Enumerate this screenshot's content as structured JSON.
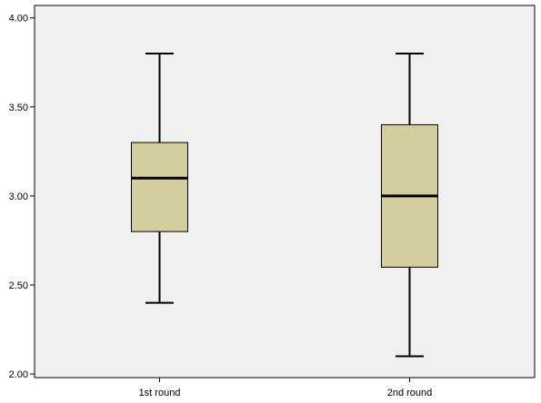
{
  "chart_data": {
    "type": "box",
    "title": "",
    "xlabel": "",
    "ylabel": "",
    "categories": [
      "1st round",
      "2nd round"
    ],
    "boxes": [
      {
        "category": "1st round",
        "min": 2.4,
        "q1": 2.8,
        "median": 3.1,
        "q3": 3.3,
        "max": 3.8
      },
      {
        "category": "2nd round",
        "min": 2.1,
        "q1": 2.6,
        "median": 3.0,
        "q3": 3.4,
        "max": 3.8
      }
    ],
    "ylim": [
      1.98,
      4.07
    ],
    "yticks": [
      2.0,
      2.5,
      3.0,
      3.5,
      4.0
    ],
    "ytick_labels": [
      "2.00",
      "2.50",
      "3.00",
      "3.50",
      "4.00"
    ],
    "grid": false,
    "legend": "none",
    "colors": {
      "plot_background": "#f0f0f0",
      "box_fill": "#d3ce9e",
      "line": "#000000",
      "frame": "#000000"
    }
  }
}
